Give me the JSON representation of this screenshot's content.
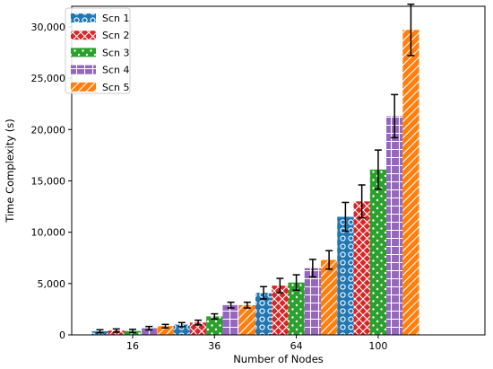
{
  "chart_data": {
    "type": "bar",
    "title": "",
    "xlabel": "Number of Nodes",
    "ylabel": "Time Complexity (s)",
    "categories": [
      "16",
      "36",
      "64",
      "100"
    ],
    "ylim": [
      0,
      32000
    ],
    "yticks": [
      0,
      5000,
      10000,
      15000,
      20000,
      25000,
      30000
    ],
    "ytick_labels": [
      "0",
      "5,000",
      "10,000",
      "15,000",
      "20,000",
      "25,000",
      "30,000"
    ],
    "grid": false,
    "legend_position": "top-left",
    "series": [
      {
        "name": "Scn 1",
        "color": "#1f77b4",
        "pattern": "circles",
        "values": [
          350,
          1000,
          4100,
          11500
        ],
        "errors": [
          150,
          200,
          600,
          1400
        ]
      },
      {
        "name": "Scn 2",
        "color": "#d62728",
        "pattern": "crosshatch",
        "values": [
          420,
          1200,
          4800,
          13000
        ],
        "errors": [
          160,
          230,
          700,
          1600
        ]
      },
      {
        "name": "Scn 3",
        "color": "#2ca02c",
        "pattern": "dots",
        "values": [
          380,
          1800,
          5100,
          16100
        ],
        "errors": [
          160,
          250,
          750,
          1900
        ]
      },
      {
        "name": "Scn 4",
        "color": "#9467bd",
        "pattern": "grid",
        "values": [
          650,
          2900,
          6500,
          21300
        ],
        "errors": [
          170,
          280,
          850,
          2100
        ]
      },
      {
        "name": "Scn 5",
        "color": "#ff7f0e",
        "pattern": "diagonal",
        "values": [
          850,
          2900,
          7300,
          29700
        ],
        "errors": [
          170,
          280,
          900,
          2500
        ]
      }
    ]
  }
}
